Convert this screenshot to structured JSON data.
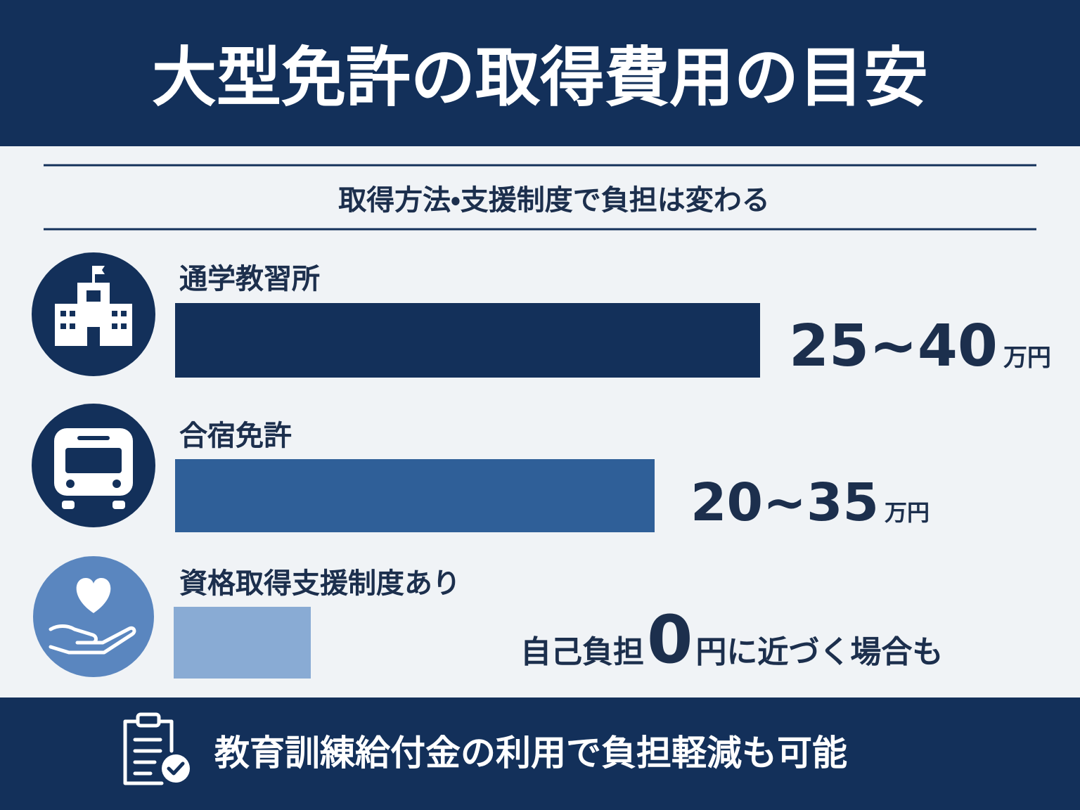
{
  "header": {
    "title": "大型免許の取得費用の目安"
  },
  "subtitle": "取得方法・支援制度で負担は変わる",
  "items": [
    {
      "label": "通学教習所",
      "amount": "25~40",
      "unit": "万円"
    },
    {
      "label": "合宿免許",
      "amount": "20~35",
      "unit": "万円"
    },
    {
      "label": "資格取得支援制度あり",
      "note_before": "自己負担",
      "note_number": "0",
      "note_after": "円に近づく場合も"
    }
  ],
  "footer": {
    "text": "教育訓練給付金の利用で負担軽減も可能"
  }
}
